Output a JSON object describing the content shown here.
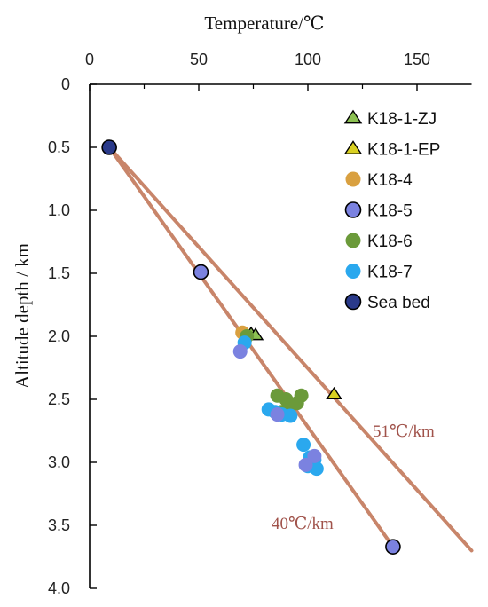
{
  "chart_data": {
    "type": "scatter",
    "title": "",
    "xlabel": "Temperature/℃",
    "ylabel": "Altitude depth / km",
    "x_axis_position": "top",
    "y_axis_inverted": true,
    "xlim": [
      0,
      175
    ],
    "ylim": [
      0,
      4.0
    ],
    "x_ticks": [
      "0",
      "50",
      "100",
      "150"
    ],
    "x_tick_values": [
      0,
      50,
      100,
      150
    ],
    "y_ticks": [
      "0",
      "0.5",
      "1.0",
      "1.5",
      "2.0",
      "2.5",
      "3.0",
      "3.5",
      "4.0"
    ],
    "y_tick_values": [
      0,
      0.5,
      1.0,
      1.5,
      2.0,
      2.5,
      3.0,
      3.5,
      4.0
    ],
    "grid": false,
    "legend_position": "top-right",
    "series": [
      {
        "name": "K18-1-ZJ",
        "marker": "triangle",
        "color": "#8cc152",
        "stroke": "#000000",
        "points": [
          [
            74,
            1.98
          ],
          [
            76,
            1.99
          ]
        ]
      },
      {
        "name": "K18-1-EP",
        "marker": "triangle",
        "color": "#d9d022",
        "stroke": "#000000",
        "points": [
          [
            112,
            2.46
          ]
        ]
      },
      {
        "name": "K18-4",
        "marker": "circle",
        "color": "#d9a040",
        "stroke": "none",
        "points": [
          [
            70,
            1.97
          ]
        ]
      },
      {
        "name": "K18-5",
        "marker": "circle",
        "color": "#7b82e0",
        "stroke": "#000000",
        "points": [
          [
            51,
            1.49
          ],
          [
            139,
            3.67
          ]
        ]
      },
      {
        "name": "K18-6",
        "marker": "circle",
        "color": "#6b9a3a",
        "stroke": "none",
        "points": [
          [
            72,
            2.0
          ],
          [
            86,
            2.47
          ],
          [
            90,
            2.5
          ],
          [
            92,
            2.55
          ],
          [
            95,
            2.53
          ],
          [
            97,
            2.47
          ],
          [
            88,
            2.6
          ]
        ]
      },
      {
        "name": "K18-7",
        "marker": "circle",
        "color": "#2aa8ee",
        "stroke": "none",
        "points": [
          [
            71,
            2.05
          ],
          [
            82,
            2.58
          ],
          [
            85,
            2.6
          ],
          [
            88,
            2.62
          ],
          [
            92,
            2.63
          ],
          [
            98,
            2.86
          ],
          [
            101,
            2.96
          ],
          [
            103,
            2.98
          ],
          [
            100,
            3.03
          ],
          [
            104,
            3.05
          ]
        ]
      },
      {
        "name": "K18-5 (cluster)",
        "legend": false,
        "marker": "circle",
        "color": "#7b82e0",
        "stroke": "none",
        "points": [
          [
            69,
            2.12
          ],
          [
            86,
            2.62
          ],
          [
            103,
            2.95
          ],
          [
            99,
            3.02
          ]
        ]
      },
      {
        "name": "Sea bed",
        "marker": "circle",
        "color": "#2a3a8a",
        "stroke": "#000000",
        "points": [
          [
            9,
            0.5
          ]
        ]
      }
    ],
    "trend_lines": [
      {
        "label": "51℃/km",
        "from": [
          9,
          0.5
        ],
        "to": [
          175,
          3.7
        ],
        "color": "#c8856a"
      },
      {
        "label": "40℃/km",
        "from": [
          9,
          0.5
        ],
        "to": [
          139,
          3.67
        ],
        "color": "#c8856a"
      }
    ],
    "legend_entries": [
      "K18-1-ZJ",
      "K18-1-EP",
      "K18-4",
      "K18-5",
      "K18-6",
      "K18-7",
      "Sea bed"
    ]
  }
}
